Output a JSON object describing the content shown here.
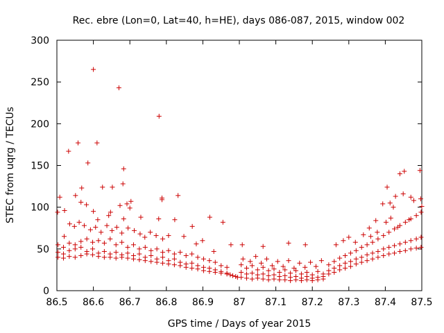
{
  "chart_data": {
    "type": "scatter",
    "title": "Rec. ebre (Lon=0, Lat=40, h=HE), days 086-087, 2015, window 002",
    "xlabel": "GPS time / Days of year 2015",
    "ylabel": "STEC from uqrg / TECUs",
    "xlim": [
      86.5,
      87.5
    ],
    "ylim": [
      0,
      300
    ],
    "xticks": [
      "86.5",
      "86.6",
      "86.7",
      "86.8",
      "86.9",
      "87",
      "87.1",
      "87.2",
      "87.3",
      "87.4",
      "87.5"
    ],
    "yticks": [
      "0",
      "50",
      "100",
      "150",
      "200",
      "250",
      "300"
    ],
    "grid": false,
    "marker": "+",
    "color": "#cc0000",
    "points": [
      [
        86.6,
        265
      ],
      [
        86.67,
        243
      ],
      [
        86.78,
        209
      ],
      [
        86.558,
        177
      ],
      [
        86.61,
        177
      ],
      [
        86.532,
        167
      ],
      [
        86.585,
        153
      ],
      [
        86.683,
        146
      ],
      [
        86.568,
        123
      ],
      [
        86.625,
        124
      ],
      [
        86.652,
        124
      ],
      [
        86.681,
        128
      ],
      [
        86.832,
        114
      ],
      [
        86.788,
        111
      ],
      [
        86.788,
        109
      ],
      [
        86.508,
        112
      ],
      [
        86.551,
        114
      ],
      [
        86.502,
        94
      ],
      [
        86.521,
        96
      ],
      [
        86.581,
        103
      ],
      [
        86.566,
        106
      ],
      [
        86.673,
        102
      ],
      [
        86.692,
        104
      ],
      [
        86.703,
        107
      ],
      [
        86.6,
        95
      ],
      [
        86.647,
        94
      ],
      [
        86.642,
        90
      ],
      [
        86.612,
        85
      ],
      [
        86.73,
        88
      ],
      [
        86.683,
        86
      ],
      [
        86.919,
        88
      ],
      [
        86.955,
        82
      ],
      [
        86.779,
        86
      ],
      [
        86.823,
        85
      ],
      [
        86.871,
        77
      ],
      [
        86.7,
        99
      ],
      [
        86.52,
        65
      ],
      [
        86.535,
        80
      ],
      [
        86.548,
        77
      ],
      [
        86.561,
        82
      ],
      [
        86.575,
        78
      ],
      [
        86.592,
        73
      ],
      [
        86.606,
        76
      ],
      [
        86.621,
        70
      ],
      [
        86.637,
        78
      ],
      [
        86.651,
        72
      ],
      [
        86.664,
        76
      ],
      [
        86.678,
        69
      ],
      [
        86.695,
        75
      ],
      [
        86.712,
        72
      ],
      [
        86.728,
        68
      ],
      [
        86.741,
        64
      ],
      [
        86.756,
        70
      ],
      [
        86.772,
        66
      ],
      [
        86.79,
        62
      ],
      [
        86.806,
        66
      ],
      [
        86.848,
        65
      ],
      [
        86.882,
        56
      ],
      [
        86.899,
        60
      ],
      [
        86.93,
        47
      ],
      [
        86.977,
        55
      ],
      [
        87.008,
        55
      ],
      [
        87.065,
        53
      ],
      [
        87.135,
        57
      ],
      [
        87.181,
        55
      ],
      [
        86.503,
        55
      ],
      [
        86.518,
        52
      ],
      [
        86.534,
        57
      ],
      [
        86.55,
        55
      ],
      [
        86.566,
        59
      ],
      [
        86.582,
        62
      ],
      [
        86.598,
        58
      ],
      [
        86.614,
        60
      ],
      [
        86.63,
        57
      ],
      [
        86.646,
        62
      ],
      [
        86.662,
        55
      ],
      [
        86.678,
        58
      ],
      [
        86.694,
        52
      ],
      [
        86.71,
        55
      ],
      [
        86.726,
        50
      ],
      [
        86.742,
        52
      ],
      [
        86.758,
        48
      ],
      [
        86.774,
        50
      ],
      [
        86.79,
        46
      ],
      [
        86.806,
        48
      ],
      [
        86.822,
        44
      ],
      [
        86.838,
        46
      ],
      [
        86.854,
        42
      ],
      [
        86.87,
        44
      ],
      [
        86.886,
        40
      ],
      [
        86.902,
        38
      ],
      [
        86.918,
        36
      ],
      [
        86.934,
        34
      ],
      [
        86.95,
        30
      ],
      [
        86.966,
        28
      ],
      [
        86.503,
        46
      ],
      [
        86.518,
        44
      ],
      [
        86.534,
        48
      ],
      [
        86.55,
        50
      ],
      [
        86.566,
        52
      ],
      [
        86.582,
        47
      ],
      [
        86.598,
        50
      ],
      [
        86.614,
        45
      ],
      [
        86.63,
        47
      ],
      [
        86.646,
        44
      ],
      [
        86.662,
        46
      ],
      [
        86.678,
        43
      ],
      [
        86.694,
        45
      ],
      [
        86.71,
        42
      ],
      [
        86.726,
        44
      ],
      [
        86.742,
        40
      ],
      [
        86.758,
        42
      ],
      [
        86.774,
        38
      ],
      [
        86.79,
        40
      ],
      [
        86.806,
        36
      ],
      [
        86.822,
        38
      ],
      [
        86.838,
        34
      ],
      [
        86.854,
        32
      ],
      [
        86.87,
        33
      ],
      [
        86.886,
        30
      ],
      [
        86.902,
        28
      ],
      [
        86.918,
        27
      ],
      [
        86.934,
        25
      ],
      [
        86.95,
        23
      ],
      [
        86.966,
        21
      ],
      [
        86.503,
        40
      ],
      [
        86.518,
        39
      ],
      [
        86.534,
        41
      ],
      [
        86.55,
        40
      ],
      [
        86.566,
        42
      ],
      [
        86.582,
        44
      ],
      [
        86.598,
        43
      ],
      [
        86.614,
        41
      ],
      [
        86.63,
        40
      ],
      [
        86.646,
        40
      ],
      [
        86.662,
        39
      ],
      [
        86.678,
        40
      ],
      [
        86.694,
        39
      ],
      [
        86.71,
        38
      ],
      [
        86.726,
        37
      ],
      [
        86.742,
        36
      ],
      [
        86.758,
        35
      ],
      [
        86.774,
        34
      ],
      [
        86.79,
        33
      ],
      [
        86.806,
        32
      ],
      [
        86.822,
        31
      ],
      [
        86.838,
        30
      ],
      [
        86.854,
        28
      ],
      [
        86.87,
        27
      ],
      [
        86.886,
        26
      ],
      [
        86.902,
        24
      ],
      [
        86.918,
        23
      ],
      [
        86.934,
        22
      ],
      [
        86.95,
        21
      ],
      [
        86.966,
        20
      ],
      [
        86.975,
        19
      ],
      [
        86.982,
        18
      ],
      [
        86.99,
        17
      ],
      [
        86.995,
        16
      ],
      [
        87.005,
        31
      ],
      [
        87.02,
        27
      ],
      [
        87.035,
        30
      ],
      [
        87.05,
        25
      ],
      [
        87.065,
        28
      ],
      [
        87.08,
        24
      ],
      [
        87.095,
        26
      ],
      [
        87.11,
        22
      ],
      [
        87.125,
        25
      ],
      [
        87.14,
        21
      ],
      [
        87.155,
        24
      ],
      [
        87.17,
        20
      ],
      [
        87.185,
        22
      ],
      [
        87.2,
        19
      ],
      [
        87.215,
        23
      ],
      [
        87.23,
        20
      ],
      [
        87.005,
        22
      ],
      [
        87.02,
        20
      ],
      [
        87.035,
        21
      ],
      [
        87.05,
        19
      ],
      [
        87.065,
        20
      ],
      [
        87.08,
        18
      ],
      [
        87.095,
        19
      ],
      [
        87.11,
        17
      ],
      [
        87.125,
        18
      ],
      [
        87.14,
        16
      ],
      [
        87.155,
        17
      ],
      [
        87.17,
        15
      ],
      [
        87.185,
        17
      ],
      [
        87.2,
        15
      ],
      [
        87.215,
        16
      ],
      [
        87.23,
        17
      ],
      [
        87.005,
        16
      ],
      [
        87.02,
        15
      ],
      [
        87.035,
        14
      ],
      [
        87.05,
        15
      ],
      [
        87.065,
        14
      ],
      [
        87.08,
        13
      ],
      [
        87.095,
        14
      ],
      [
        87.11,
        13
      ],
      [
        87.125,
        13
      ],
      [
        87.14,
        12
      ],
      [
        87.155,
        13
      ],
      [
        87.17,
        12
      ],
      [
        87.185,
        13
      ],
      [
        87.2,
        12
      ],
      [
        87.215,
        13
      ],
      [
        87.23,
        14
      ],
      [
        87.01,
        38
      ],
      [
        87.03,
        35
      ],
      [
        87.045,
        41
      ],
      [
        87.06,
        33
      ],
      [
        87.075,
        38
      ],
      [
        87.09,
        30
      ],
      [
        87.105,
        35
      ],
      [
        87.12,
        29
      ],
      [
        87.135,
        36
      ],
      [
        87.15,
        27
      ],
      [
        87.165,
        33
      ],
      [
        87.18,
        28
      ],
      [
        87.195,
        34
      ],
      [
        87.21,
        29
      ],
      [
        87.225,
        36
      ],
      [
        87.245,
        24
      ],
      [
        87.26,
        27
      ],
      [
        87.275,
        30
      ],
      [
        87.29,
        33
      ],
      [
        87.305,
        35
      ],
      [
        87.32,
        38
      ],
      [
        87.335,
        40
      ],
      [
        87.35,
        43
      ],
      [
        87.365,
        45
      ],
      [
        87.38,
        47
      ],
      [
        87.395,
        50
      ],
      [
        87.41,
        52
      ],
      [
        87.425,
        54
      ],
      [
        87.44,
        56
      ],
      [
        87.455,
        58
      ],
      [
        87.47,
        60
      ],
      [
        87.485,
        62
      ],
      [
        87.498,
        64
      ],
      [
        87.245,
        20
      ],
      [
        87.26,
        22
      ],
      [
        87.275,
        25
      ],
      [
        87.29,
        27
      ],
      [
        87.305,
        29
      ],
      [
        87.32,
        32
      ],
      [
        87.335,
        34
      ],
      [
        87.35,
        36
      ],
      [
        87.365,
        38
      ],
      [
        87.38,
        40
      ],
      [
        87.395,
        42
      ],
      [
        87.41,
        44
      ],
      [
        87.425,
        45
      ],
      [
        87.44,
        47
      ],
      [
        87.455,
        48
      ],
      [
        87.47,
        50
      ],
      [
        87.485,
        51
      ],
      [
        87.498,
        52
      ],
      [
        87.245,
        31
      ],
      [
        87.26,
        35
      ],
      [
        87.275,
        39
      ],
      [
        87.29,
        42
      ],
      [
        87.305,
        45
      ],
      [
        87.32,
        48
      ],
      [
        87.335,
        52
      ],
      [
        87.35,
        55
      ],
      [
        87.365,
        58
      ],
      [
        87.38,
        62
      ],
      [
        87.395,
        66
      ],
      [
        87.41,
        70
      ],
      [
        87.425,
        74
      ],
      [
        87.44,
        78
      ],
      [
        87.455,
        82
      ],
      [
        87.47,
        86
      ],
      [
        87.485,
        90
      ],
      [
        87.498,
        94
      ],
      [
        87.265,
        55
      ],
      [
        87.285,
        60
      ],
      [
        87.3,
        64
      ],
      [
        87.318,
        58
      ],
      [
        87.34,
        67
      ],
      [
        87.36,
        65
      ],
      [
        87.378,
        70
      ],
      [
        87.393,
        104
      ],
      [
        87.405,
        124
      ],
      [
        87.413,
        105
      ],
      [
        87.422,
        100
      ],
      [
        87.428,
        113
      ],
      [
        87.44,
        140
      ],
      [
        87.449,
        116
      ],
      [
        87.452,
        143
      ],
      [
        87.47,
        112
      ],
      [
        87.478,
        108
      ],
      [
        87.495,
        144
      ],
      [
        87.497,
        110
      ],
      [
        87.5,
        101
      ],
      [
        87.374,
        84
      ],
      [
        87.356,
        75
      ],
      [
        87.402,
        82
      ],
      [
        87.415,
        87
      ],
      [
        87.434,
        76
      ],
      [
        87.465,
        85
      ]
    ]
  }
}
